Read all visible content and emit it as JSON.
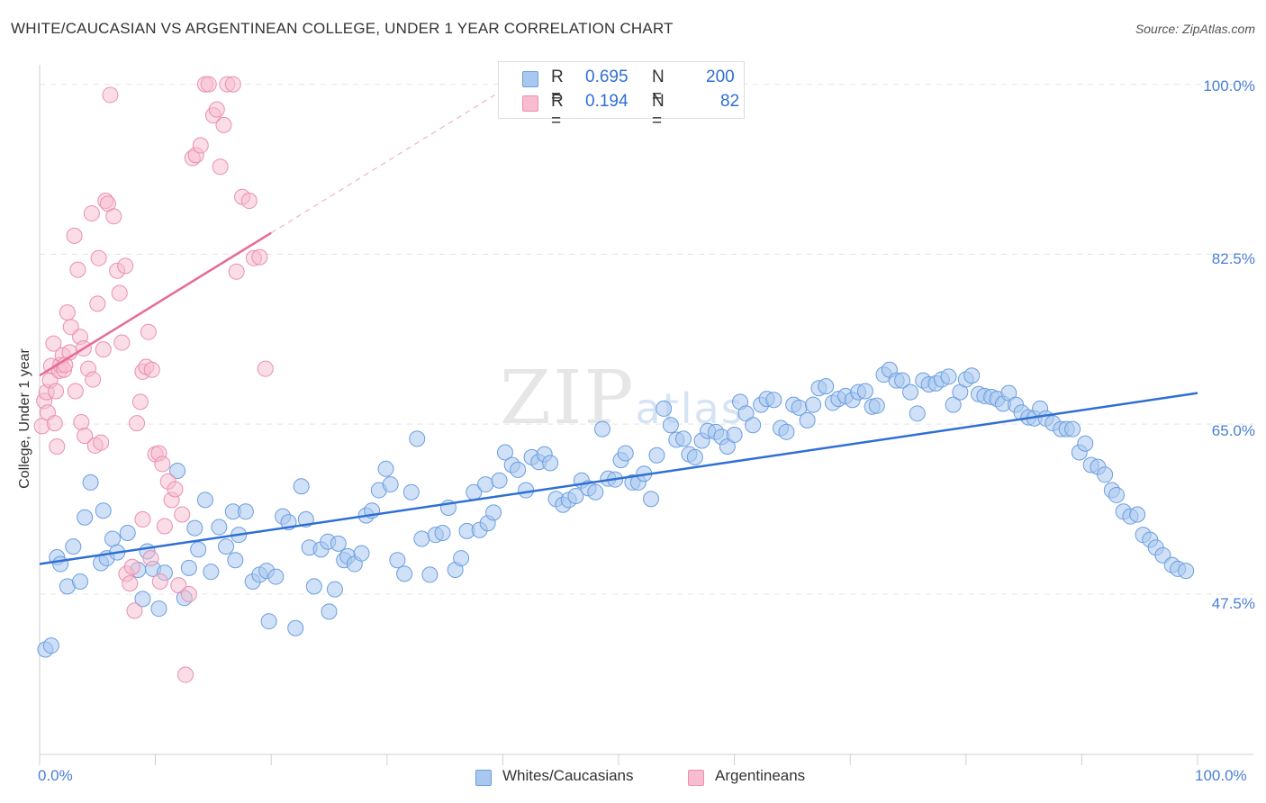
{
  "title": "WHITE/CAUCASIAN VS ARGENTINEAN COLLEGE, UNDER 1 YEAR CORRELATION CHART",
  "source": "Source: ZipAtlas.com",
  "watermark": {
    "main": "ZIP",
    "sub": "atlas"
  },
  "legend": {
    "rows": [
      {
        "r_label": "R =",
        "r_value": "0.695",
        "n_label": "N =",
        "n_value": "200"
      },
      {
        "r_label": "R =",
        "r_value": "0.194",
        "n_label": "N =",
        "n_value": "82"
      }
    ]
  },
  "bottom_legend": [
    "Whites/Caucasians",
    "Argentineans"
  ],
  "colors": {
    "blue_fill": "#a9c8f0",
    "blue_stroke": "#6a9ee0",
    "blue_line": "#2f6fd3",
    "pink_fill": "#f7bcd0",
    "pink_stroke": "#ea8fae",
    "pink_line": "#e76a97",
    "tick_text": "#4a7fd6"
  },
  "chart_data": {
    "type": "scatter",
    "title": "WHITE/CAUCASIAN VS ARGENTINEAN COLLEGE, UNDER 1 YEAR CORRELATION CHART",
    "xlabel": "",
    "ylabel": "College, Under 1 year",
    "xlim": [
      0,
      100
    ],
    "ylim": [
      31,
      102
    ],
    "y_ticks": [
      100.0,
      82.5,
      65.0,
      47.5
    ],
    "y_tick_labels": [
      "100.0%",
      "82.5%",
      "65.0%",
      "47.5%"
    ],
    "x_tick_labels": [
      "0.0%",
      "100.0%"
    ],
    "series": [
      {
        "name": "Whites/Caucasians",
        "r": 0.695,
        "n": 200,
        "trend": {
          "x": [
            0,
            100
          ],
          "y": [
            50.6,
            68.2
          ]
        },
        "points": [
          [
            0.5,
            41.8
          ],
          [
            1.0,
            42.2
          ],
          [
            1.5,
            51.3
          ],
          [
            1.8,
            50.6
          ],
          [
            2.4,
            48.3
          ],
          [
            2.9,
            52.4
          ],
          [
            3.5,
            48.8
          ],
          [
            3.9,
            55.4
          ],
          [
            4.4,
            59.0
          ],
          [
            5.3,
            50.7
          ],
          [
            5.5,
            56.1
          ],
          [
            5.8,
            51.2
          ],
          [
            6.3,
            53.2
          ],
          [
            6.7,
            51.8
          ],
          [
            7.6,
            53.8
          ],
          [
            8.5,
            50.0
          ],
          [
            8.9,
            47.0
          ],
          [
            9.3,
            51.9
          ],
          [
            9.8,
            50.1
          ],
          [
            10.3,
            46.0
          ],
          [
            10.8,
            49.7
          ],
          [
            11.9,
            60.2
          ],
          [
            12.5,
            47.1
          ],
          [
            12.9,
            50.2
          ],
          [
            13.4,
            54.3
          ],
          [
            13.7,
            52.1
          ],
          [
            14.3,
            57.2
          ],
          [
            14.8,
            49.8
          ],
          [
            15.5,
            54.4
          ],
          [
            16.1,
            52.4
          ],
          [
            16.7,
            56.0
          ],
          [
            16.9,
            51.0
          ],
          [
            17.2,
            53.6
          ],
          [
            17.8,
            56.0
          ],
          [
            18.4,
            48.8
          ],
          [
            19.0,
            49.5
          ],
          [
            19.6,
            49.9
          ],
          [
            19.8,
            44.7
          ],
          [
            20.4,
            49.3
          ],
          [
            21.0,
            55.5
          ],
          [
            21.5,
            54.9
          ],
          [
            22.1,
            44.0
          ],
          [
            22.6,
            58.6
          ],
          [
            23.0,
            55.2
          ],
          [
            23.3,
            52.3
          ],
          [
            23.7,
            48.3
          ],
          [
            24.3,
            52.1
          ],
          [
            24.9,
            52.9
          ],
          [
            25.0,
            45.7
          ],
          [
            25.5,
            48.0
          ],
          [
            25.8,
            52.7
          ],
          [
            26.3,
            51.0
          ],
          [
            26.6,
            51.4
          ],
          [
            27.2,
            50.6
          ],
          [
            27.8,
            51.7
          ],
          [
            28.2,
            55.6
          ],
          [
            28.7,
            56.1
          ],
          [
            29.3,
            58.2
          ],
          [
            29.9,
            60.4
          ],
          [
            30.3,
            58.8
          ],
          [
            30.9,
            51.0
          ],
          [
            31.5,
            49.6
          ],
          [
            32.1,
            58.0
          ],
          [
            32.6,
            63.5
          ],
          [
            33.0,
            53.2
          ],
          [
            33.7,
            49.5
          ],
          [
            34.2,
            53.6
          ],
          [
            34.8,
            53.8
          ],
          [
            35.3,
            56.4
          ],
          [
            35.9,
            50.0
          ],
          [
            36.4,
            51.2
          ],
          [
            36.9,
            54.0
          ],
          [
            37.5,
            58.0
          ],
          [
            38.0,
            54.1
          ],
          [
            38.5,
            58.8
          ],
          [
            38.7,
            54.8
          ],
          [
            39.2,
            55.9
          ],
          [
            39.7,
            59.2
          ],
          [
            40.2,
            62.1
          ],
          [
            40.8,
            60.8
          ],
          [
            41.3,
            60.3
          ],
          [
            42.0,
            58.2
          ],
          [
            42.5,
            61.6
          ],
          [
            43.1,
            61.1
          ],
          [
            43.6,
            61.9
          ],
          [
            44.1,
            61.0
          ],
          [
            44.6,
            57.3
          ],
          [
            45.2,
            56.7
          ],
          [
            45.7,
            57.2
          ],
          [
            46.3,
            57.6
          ],
          [
            46.8,
            59.2
          ],
          [
            47.4,
            58.4
          ],
          [
            48.0,
            58.0
          ],
          [
            48.6,
            64.5
          ],
          [
            49.1,
            59.4
          ],
          [
            49.7,
            59.3
          ],
          [
            50.2,
            61.3
          ],
          [
            50.6,
            62.0
          ],
          [
            51.2,
            59.0
          ],
          [
            51.7,
            59.0
          ],
          [
            52.2,
            59.9
          ],
          [
            52.8,
            57.3
          ],
          [
            53.3,
            61.8
          ],
          [
            53.9,
            66.6
          ],
          [
            54.5,
            64.9
          ],
          [
            55.0,
            63.4
          ],
          [
            55.6,
            63.5
          ],
          [
            56.1,
            61.9
          ],
          [
            56.6,
            61.6
          ],
          [
            57.2,
            63.3
          ],
          [
            57.7,
            64.3
          ],
          [
            58.4,
            64.2
          ],
          [
            58.9,
            63.7
          ],
          [
            59.4,
            62.7
          ],
          [
            60.0,
            63.9
          ],
          [
            60.5,
            67.3
          ],
          [
            61.0,
            66.1
          ],
          [
            61.6,
            64.9
          ],
          [
            62.3,
            67.0
          ],
          [
            62.8,
            67.6
          ],
          [
            63.4,
            67.5
          ],
          [
            64.0,
            64.6
          ],
          [
            64.5,
            64.2
          ],
          [
            65.1,
            67.0
          ],
          [
            65.6,
            66.7
          ],
          [
            66.3,
            65.4
          ],
          [
            66.8,
            67.0
          ],
          [
            67.3,
            68.7
          ],
          [
            67.9,
            68.9
          ],
          [
            68.5,
            67.2
          ],
          [
            69.0,
            67.6
          ],
          [
            69.6,
            67.9
          ],
          [
            70.2,
            67.5
          ],
          [
            70.7,
            68.3
          ],
          [
            71.3,
            68.4
          ],
          [
            71.9,
            66.8
          ],
          [
            72.3,
            66.9
          ],
          [
            72.9,
            70.1
          ],
          [
            73.4,
            70.6
          ],
          [
            74.0,
            69.5
          ],
          [
            74.5,
            69.5
          ],
          [
            75.2,
            68.3
          ],
          [
            75.8,
            66.1
          ],
          [
            76.3,
            69.5
          ],
          [
            76.8,
            69.1
          ],
          [
            77.4,
            69.2
          ],
          [
            77.9,
            69.6
          ],
          [
            78.5,
            69.9
          ],
          [
            78.9,
            67.0
          ],
          [
            79.5,
            68.3
          ],
          [
            80.0,
            69.6
          ],
          [
            80.5,
            70.0
          ],
          [
            81.1,
            68.1
          ],
          [
            81.6,
            67.9
          ],
          [
            82.2,
            67.8
          ],
          [
            82.7,
            67.6
          ],
          [
            83.2,
            67.1
          ],
          [
            83.7,
            68.2
          ],
          [
            84.3,
            67.0
          ],
          [
            84.8,
            66.2
          ],
          [
            85.4,
            65.7
          ],
          [
            85.9,
            65.6
          ],
          [
            86.4,
            66.6
          ],
          [
            86.9,
            65.6
          ],
          [
            87.5,
            65.1
          ],
          [
            88.2,
            64.5
          ],
          [
            88.7,
            64.5
          ],
          [
            89.2,
            64.5
          ],
          [
            89.8,
            62.1
          ],
          [
            90.3,
            63.0
          ],
          [
            90.8,
            60.8
          ],
          [
            91.4,
            60.6
          ],
          [
            92.0,
            59.8
          ],
          [
            92.6,
            58.2
          ],
          [
            93.0,
            57.7
          ],
          [
            93.6,
            56.0
          ],
          [
            94.2,
            55.5
          ],
          [
            94.8,
            55.7
          ],
          [
            95.3,
            53.6
          ],
          [
            95.9,
            53.1
          ],
          [
            96.4,
            52.3
          ],
          [
            97.0,
            51.5
          ],
          [
            97.8,
            50.5
          ],
          [
            98.3,
            50.1
          ],
          [
            99.0,
            49.9
          ]
        ]
      },
      {
        "name": "Argentineans",
        "r": 0.194,
        "n": 82,
        "trend": {
          "x": [
            0,
            20
          ],
          "y": [
            70.0,
            84.7
          ]
        },
        "points": [
          [
            0.2,
            64.8
          ],
          [
            0.4,
            67.4
          ],
          [
            0.6,
            68.3
          ],
          [
            0.7,
            66.2
          ],
          [
            0.9,
            69.5
          ],
          [
            1.0,
            71.0
          ],
          [
            1.2,
            73.3
          ],
          [
            1.3,
            65.1
          ],
          [
            1.4,
            68.4
          ],
          [
            1.5,
            62.7
          ],
          [
            1.7,
            70.5
          ],
          [
            1.8,
            71.1
          ],
          [
            2.0,
            72.1
          ],
          [
            2.1,
            70.6
          ],
          [
            2.2,
            71.1
          ],
          [
            2.4,
            76.5
          ],
          [
            2.6,
            72.4
          ],
          [
            2.7,
            75.0
          ],
          [
            3.0,
            84.4
          ],
          [
            3.1,
            68.4
          ],
          [
            3.3,
            80.9
          ],
          [
            3.5,
            74.0
          ],
          [
            3.6,
            65.2
          ],
          [
            3.8,
            72.8
          ],
          [
            3.9,
            63.8
          ],
          [
            4.2,
            70.7
          ],
          [
            4.5,
            86.7
          ],
          [
            4.6,
            69.6
          ],
          [
            4.8,
            62.8
          ],
          [
            5.0,
            77.4
          ],
          [
            5.1,
            82.1
          ],
          [
            5.3,
            63.1
          ],
          [
            5.5,
            72.7
          ],
          [
            5.7,
            88.0
          ],
          [
            5.9,
            87.7
          ],
          [
            6.1,
            98.9
          ],
          [
            6.4,
            86.4
          ],
          [
            6.7,
            80.8
          ],
          [
            6.9,
            78.5
          ],
          [
            7.1,
            73.4
          ],
          [
            7.4,
            81.3
          ],
          [
            7.5,
            49.6
          ],
          [
            7.8,
            48.6
          ],
          [
            8.0,
            50.3
          ],
          [
            8.2,
            45.8
          ],
          [
            8.4,
            65.1
          ],
          [
            8.7,
            67.3
          ],
          [
            8.9,
            70.4
          ],
          [
            9.2,
            70.9
          ],
          [
            9.4,
            74.5
          ],
          [
            9.7,
            70.6
          ],
          [
            10.0,
            61.9
          ],
          [
            10.3,
            62.0
          ],
          [
            10.6,
            60.9
          ],
          [
            10.8,
            54.5
          ],
          [
            11.1,
            59.1
          ],
          [
            11.4,
            57.2
          ],
          [
            11.7,
            58.3
          ],
          [
            12.0,
            48.4
          ],
          [
            12.3,
            55.7
          ],
          [
            12.6,
            39.2
          ],
          [
            12.9,
            47.5
          ],
          [
            13.2,
            92.4
          ],
          [
            13.5,
            92.7
          ],
          [
            13.9,
            93.7
          ],
          [
            14.3,
            100.0
          ],
          [
            14.6,
            100.0
          ],
          [
            15.0,
            96.8
          ],
          [
            15.3,
            97.4
          ],
          [
            15.6,
            91.5
          ],
          [
            15.9,
            95.8
          ],
          [
            16.2,
            100.0
          ],
          [
            16.7,
            100.0
          ],
          [
            17.0,
            80.7
          ],
          [
            17.5,
            88.4
          ],
          [
            18.1,
            88.0
          ],
          [
            18.5,
            82.1
          ],
          [
            19.0,
            82.2
          ],
          [
            19.5,
            70.7
          ],
          [
            8.9,
            55.2
          ],
          [
            9.6,
            51.2
          ],
          [
            10.4,
            48.8
          ]
        ]
      }
    ]
  }
}
